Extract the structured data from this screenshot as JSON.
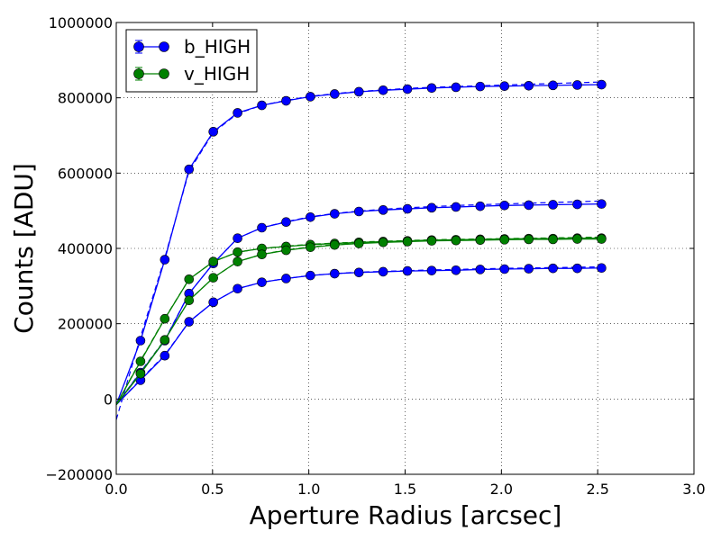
{
  "chart_data": {
    "type": "line",
    "title": "",
    "xlabel": "Aperture Radius [arcsec]",
    "ylabel": "Counts [ADU]",
    "xlim": [
      0.0,
      3.0
    ],
    "ylim": [
      -200000,
      1000000
    ],
    "x_ticks": [
      "0.0",
      "0.5",
      "1.0",
      "1.5",
      "2.0",
      "2.5",
      "3.0"
    ],
    "y_ticks": [
      "−200000",
      "0",
      "200000",
      "400000",
      "600000",
      "800000",
      "1000000"
    ],
    "grid": true,
    "legend_position": "top-left",
    "legend": [
      {
        "label": "b_HIGH",
        "color": "#0000ff"
      },
      {
        "label": "v_HIGH",
        "color": "#008000"
      }
    ],
    "x": [
      0.0,
      0.126,
      0.252,
      0.378,
      0.504,
      0.63,
      0.756,
      0.882,
      1.008,
      1.134,
      1.26,
      1.386,
      1.512,
      1.638,
      1.764,
      1.89,
      2.016,
      2.142,
      2.268,
      2.394,
      2.52
    ],
    "series": [
      {
        "name": "b_HIGH",
        "color": "#0000ff",
        "values": [
          -15000,
          155000,
          370000,
          610000,
          710000,
          760000,
          780000,
          792000,
          803000,
          810000,
          816000,
          820000,
          823000,
          826000,
          828000,
          830000,
          831000,
          832000,
          833000,
          834000,
          835000
        ],
        "fit": [
          -55000,
          165000,
          375000,
          605000,
          708000,
          758000,
          780000,
          793000,
          804000,
          811000,
          817000,
          821000,
          825000,
          828000,
          830000,
          832000,
          834000,
          836000,
          838000,
          840000,
          842000
        ]
      },
      {
        "name": "b_HIGH",
        "color": "#0000ff",
        "values": [
          -15000,
          50000,
          115000,
          205000,
          257000,
          293000,
          310000,
          320000,
          328000,
          333000,
          336000,
          338000,
          340000,
          341000,
          342000,
          344000,
          345000,
          346000,
          347000,
          347000,
          348000
        ],
        "fit": [
          -15000,
          52000,
          117000,
          205000,
          257000,
          293000,
          310000,
          320000,
          328000,
          333000,
          337000,
          339000,
          341000,
          343000,
          344000,
          346000,
          347000,
          348000,
          349000,
          350000,
          351000
        ]
      },
      {
        "name": "b_HIGH",
        "color": "#0000ff",
        "values": [
          -15000,
          70000,
          155000,
          280000,
          360000,
          427000,
          455000,
          470000,
          483000,
          492000,
          498000,
          502000,
          505000,
          508000,
          510000,
          512000,
          514000,
          515000,
          516000,
          517000,
          518000
        ],
        "fit": [
          -15000,
          72000,
          157000,
          280000,
          360000,
          427000,
          455000,
          471000,
          484000,
          493000,
          499000,
          504000,
          508000,
          511000,
          514000,
          516000,
          518000,
          520000,
          522000,
          524000,
          526000
        ]
      },
      {
        "name": "v_HIGH",
        "color": "#008000",
        "values": [
          -15000,
          100000,
          213000,
          318000,
          365000,
          390000,
          400000,
          405000,
          410000,
          413000,
          416000,
          418000,
          420000,
          422000,
          423000,
          424000,
          425000,
          426000,
          426000,
          427000,
          427000
        ],
        "fit": [
          -15000,
          102000,
          214000,
          318000,
          365000,
          390000,
          400000,
          406000,
          411000,
          414000,
          417000,
          419000,
          421000,
          423000,
          424000,
          425000,
          426000,
          427000,
          428000,
          429000,
          430000
        ]
      },
      {
        "name": "v_HIGH",
        "color": "#008000",
        "values": [
          -15000,
          67000,
          157000,
          262000,
          322000,
          365000,
          384000,
          395000,
          403000,
          409000,
          413000,
          416000,
          418000,
          420000,
          421000,
          422000,
          423000,
          424000,
          424000,
          425000,
          425000
        ],
        "fit": [
          -15000,
          69000,
          158000,
          262000,
          322000,
          365000,
          384000,
          396000,
          404000,
          410000,
          414000,
          417000,
          419000,
          421000,
          423000,
          424000,
          425000,
          426000,
          427000,
          428000,
          429000
        ]
      }
    ]
  }
}
